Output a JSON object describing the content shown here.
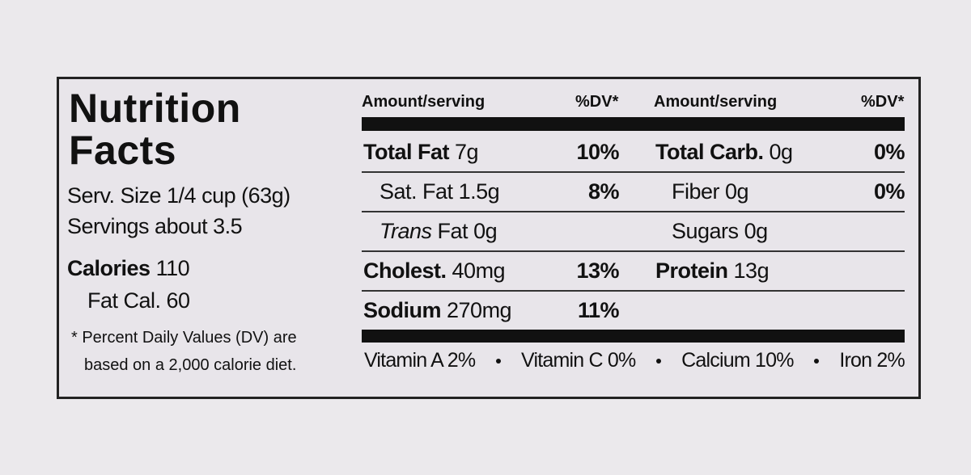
{
  "label": {
    "title": [
      "Nutrition",
      "Facts"
    ],
    "serving_size": "Serv. Size 1/4 cup (63g)",
    "servings": "Servings about 3.5",
    "calories": {
      "label": "Calories",
      "amount": "110"
    },
    "fat_calories": "Fat Cal. 60",
    "footnote": [
      "* Percent Daily Values (DV) are",
      "based on a 2,000 calorie diet."
    ],
    "columns": [
      {
        "header_amount": "Amount/serving",
        "header_dv": "%DV*",
        "rows": [
          {
            "name": "Total Fat",
            "amount": "7g",
            "dv": "10%",
            "bold": true
          },
          {
            "name": "Sat. Fat",
            "amount": "1.5g",
            "dv": "8%",
            "indent": true
          },
          {
            "name_italic": "Trans",
            "name": "Fat",
            "amount": "0g",
            "indent": true
          },
          {
            "name": "Cholest.",
            "amount": "40mg",
            "dv": "13%",
            "bold": true
          },
          {
            "name": "Sodium",
            "amount": "270mg",
            "dv": "11%",
            "bold": true
          }
        ]
      },
      {
        "header_amount": "Amount/serving",
        "header_dv": "%DV*",
        "rows": [
          {
            "name": "Total Carb.",
            "amount": "0g",
            "dv": "0%",
            "bold": true
          },
          {
            "name": "Fiber",
            "amount": "0g",
            "dv": "0%",
            "indent": true
          },
          {
            "name": "Sugars",
            "amount": "0g",
            "indent": true
          },
          {
            "name": "Protein",
            "amount": "13g",
            "bold": true
          }
        ]
      }
    ],
    "vitamins": [
      "Vitamin A 2%",
      "Vitamin C 0%",
      "Calcium 10%",
      "Iron 2%"
    ]
  }
}
